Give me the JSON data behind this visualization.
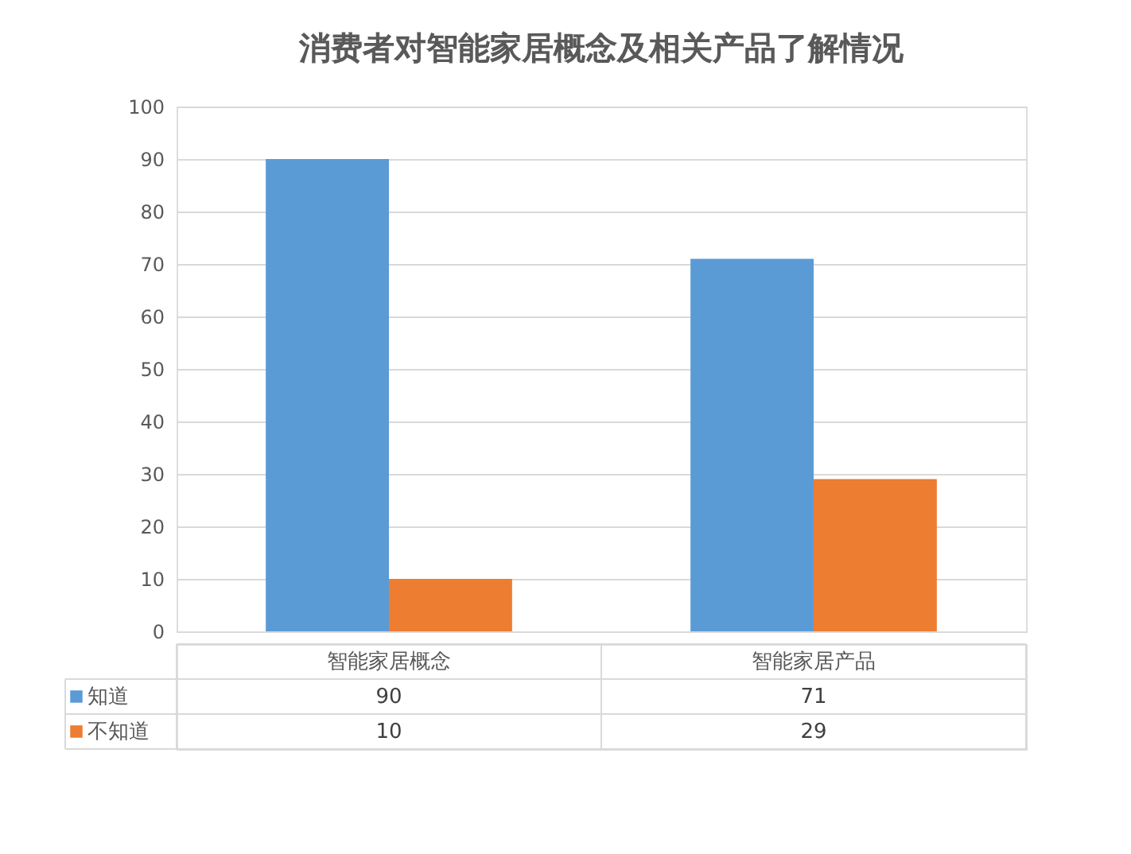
{
  "chart_data": {
    "type": "bar",
    "title": "消费者对智能家居概念及相关产品了解情况",
    "categories": [
      "智能家居概念",
      "智能家居产品"
    ],
    "series": [
      {
        "name": "知道",
        "color": "#5b9bd5",
        "values": [
          90,
          71
        ]
      },
      {
        "name": "不知道",
        "color": "#ed7d31",
        "values": [
          10,
          29
        ]
      }
    ],
    "ylim": [
      0,
      100
    ],
    "yticks": [
      0,
      10,
      20,
      30,
      40,
      50,
      60,
      70,
      80,
      90,
      100
    ],
    "grid": "y",
    "legend": "bottom",
    "data_labels": true
  }
}
